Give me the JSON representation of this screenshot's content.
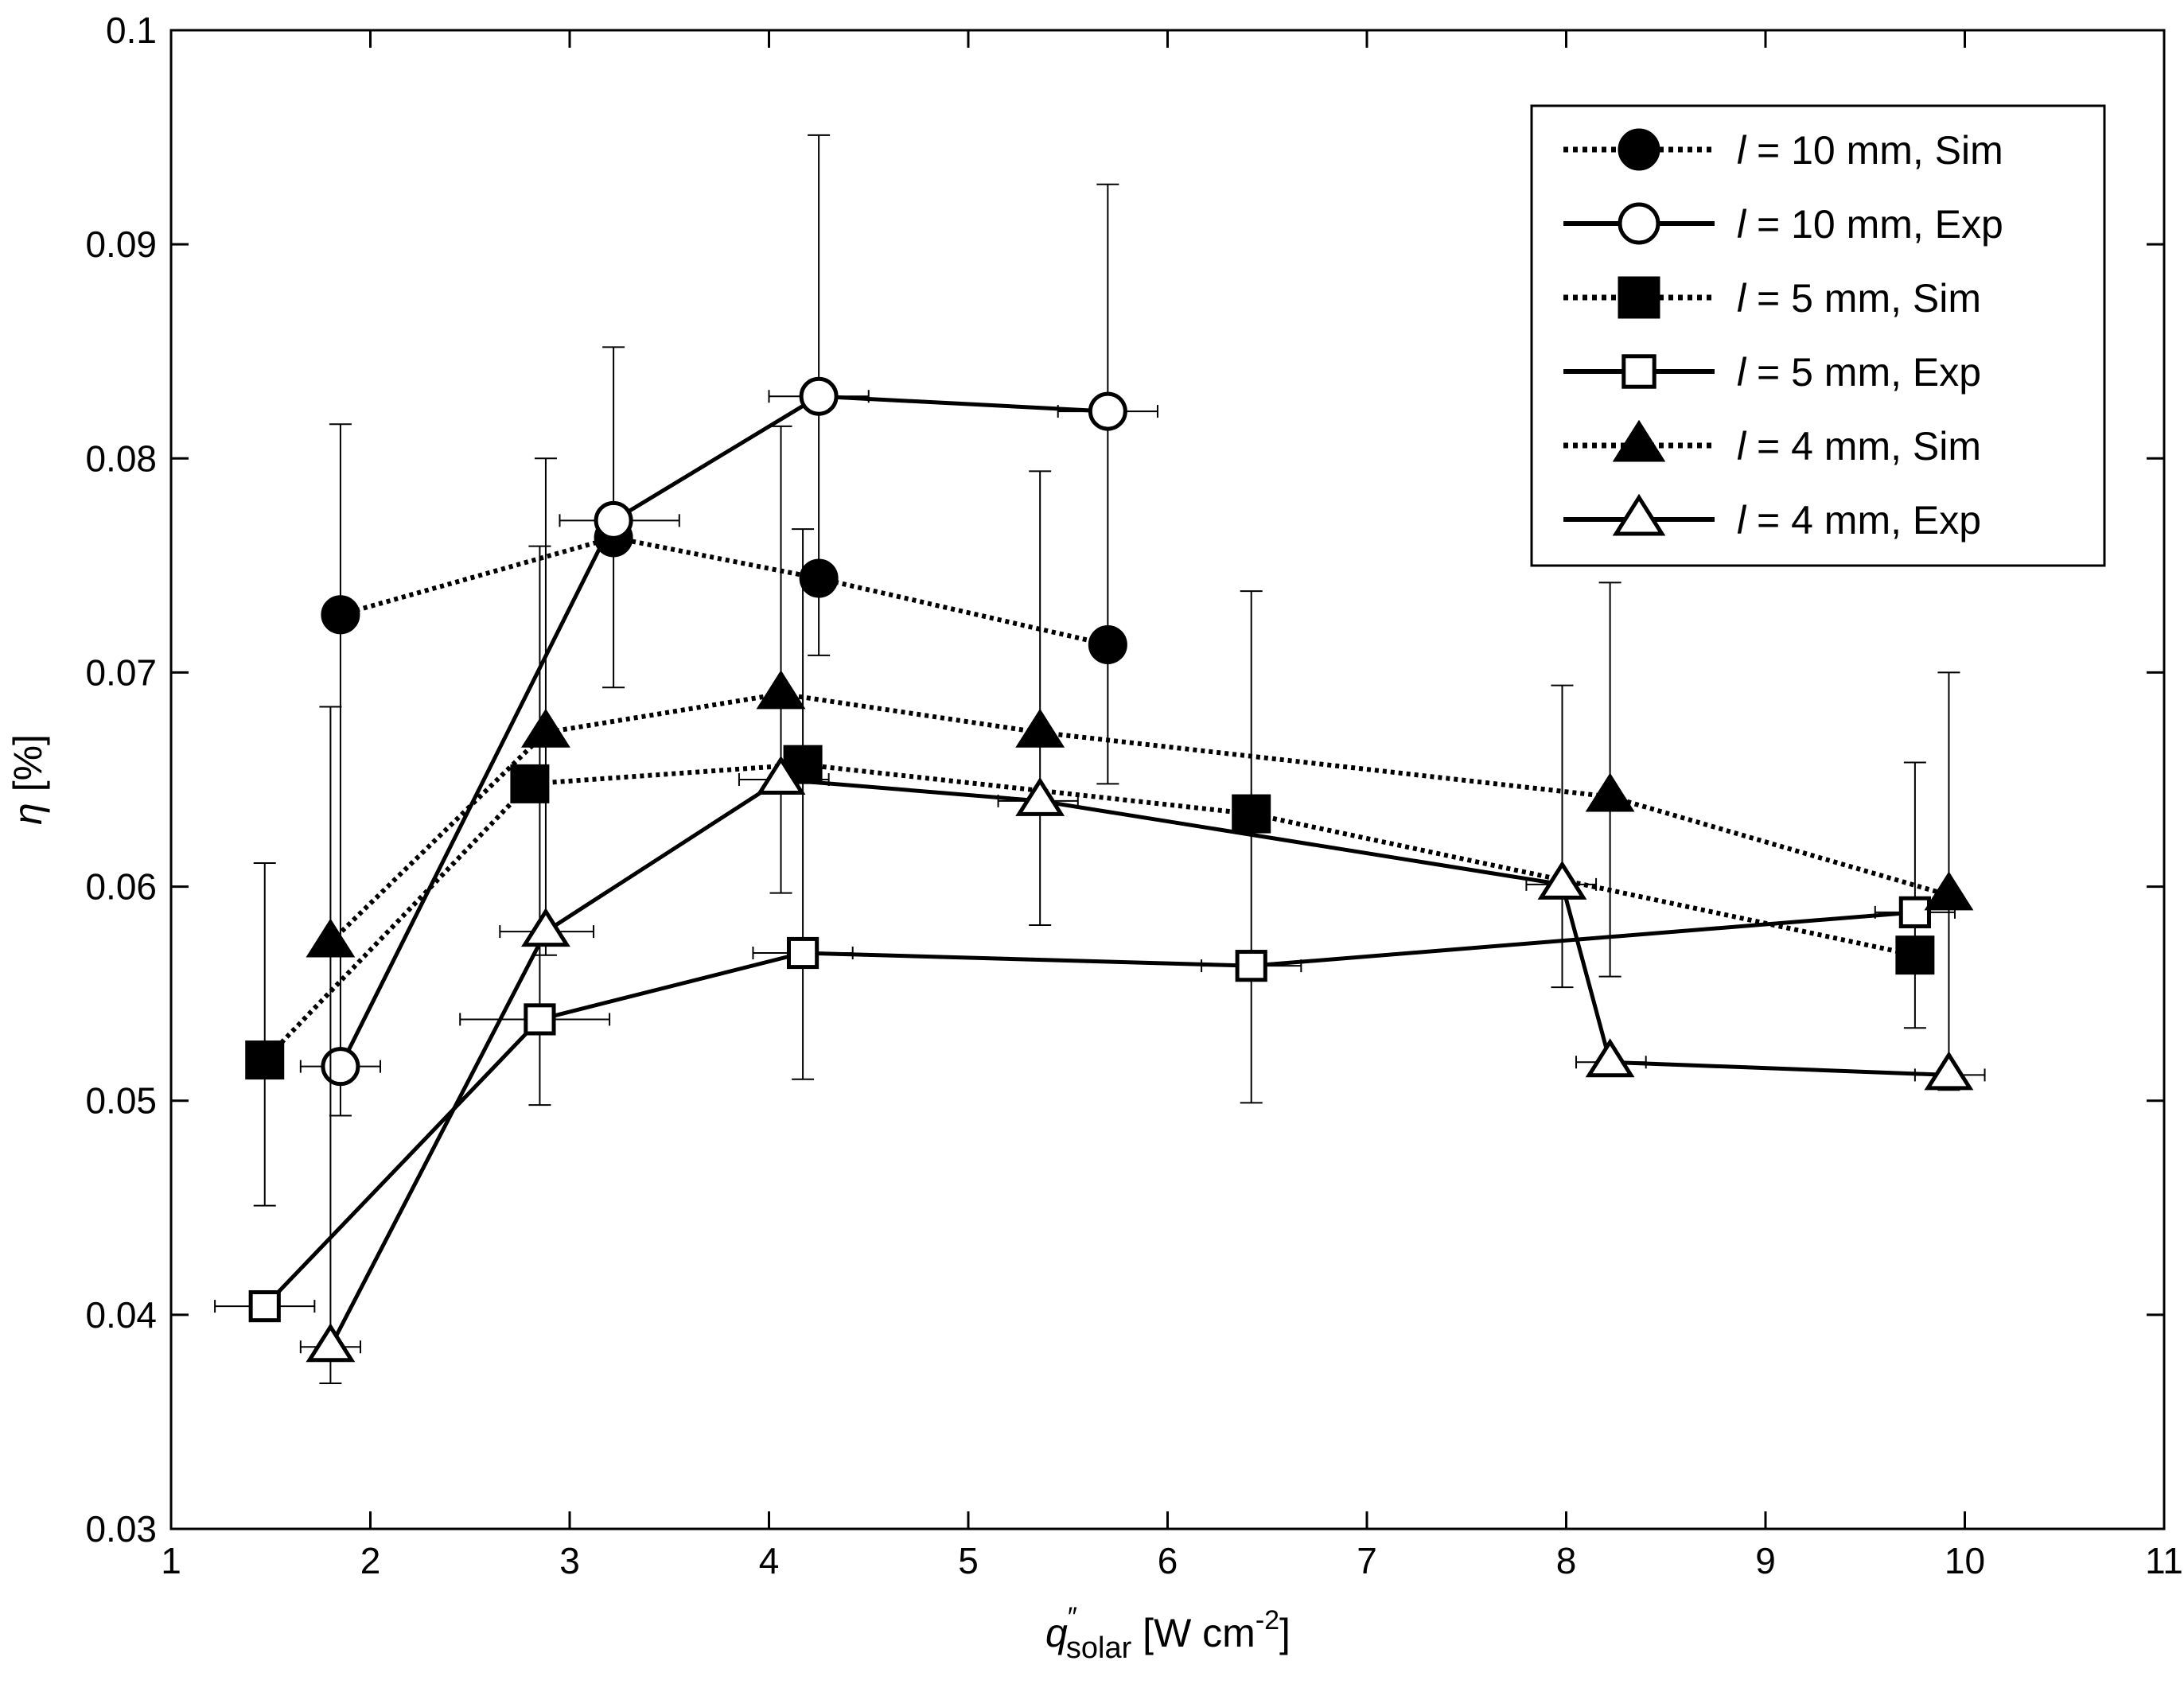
{
  "chart_data": {
    "type": "line",
    "title": "",
    "xlabel": {
      "prefix": "q",
      "superscript": "″",
      "subscript": "solar",
      "unit_open": " [W cm",
      "unit_exp": "-2",
      "unit_close": "]"
    },
    "ylabel": {
      "symbol": "η",
      "unit": " [%]"
    },
    "xlim": [
      1,
      11
    ],
    "ylim": [
      0.03,
      0.1
    ],
    "xticks": [
      1,
      2,
      3,
      4,
      5,
      6,
      7,
      8,
      9,
      10,
      11
    ],
    "yticks": [
      0.03,
      0.04,
      0.05,
      0.06,
      0.07,
      0.08,
      0.09,
      0.1
    ],
    "xtick_labels": [
      "1",
      "2",
      "3",
      "4",
      "5",
      "6",
      "7",
      "8",
      "9",
      "10",
      "11"
    ],
    "ytick_labels": [
      "0.03",
      "0.04",
      "0.05",
      "0.06",
      "0.07",
      "0.08",
      "0.09",
      "0.1"
    ],
    "grid": false,
    "legend_position": "top-right",
    "series": [
      {
        "name": "l = 10 mm, Sim",
        "var": "l",
        "label_rest": " = 10 mm, Sim",
        "marker": "circle",
        "filled": true,
        "line": "dotted",
        "points": [
          {
            "x": 1.85,
            "y": 0.0727
          },
          {
            "x": 3.22,
            "y": 0.0763
          },
          {
            "x": 4.25,
            "y": 0.0744
          },
          {
            "x": 5.7,
            "y": 0.0713
          }
        ]
      },
      {
        "name": "l = 10 mm, Exp",
        "var": "l",
        "label_rest": " = 10 mm, Exp",
        "marker": "circle",
        "filled": false,
        "line": "solid",
        "points": [
          {
            "x": 1.85,
            "y": 0.0516,
            "ylo": 0.0493,
            "yhi": 0.0816,
            "xlo": 1.65,
            "xhi": 2.05
          },
          {
            "x": 3.22,
            "y": 0.0771,
            "ylo": 0.0693,
            "yhi": 0.0852,
            "xlo": 2.95,
            "xhi": 3.55
          },
          {
            "x": 4.25,
            "y": 0.0829,
            "ylo": 0.0708,
            "yhi": 0.0951,
            "xlo": 4.0,
            "xhi": 4.5
          },
          {
            "x": 5.7,
            "y": 0.0822,
            "ylo": 0.0648,
            "yhi": 0.0928,
            "xlo": 5.45,
            "xhi": 5.95
          }
        ]
      },
      {
        "name": "l = 5 mm, Sim",
        "var": "l",
        "label_rest": " = 5 mm, Sim",
        "marker": "square",
        "filled": true,
        "line": "dotted",
        "points": [
          {
            "x": 1.47,
            "y": 0.0519
          },
          {
            "x": 2.8,
            "y": 0.0648
          },
          {
            "x": 4.17,
            "y": 0.0657
          },
          {
            "x": 6.42,
            "y": 0.0634
          },
          {
            "x": 9.75,
            "y": 0.0568
          }
        ]
      },
      {
        "name": "l = 5 mm, Exp",
        "var": "l",
        "label_rest": " = 5 mm, Exp",
        "marker": "square",
        "filled": false,
        "line": "solid",
        "points": [
          {
            "x": 1.47,
            "y": 0.0404,
            "ylo": 0.0451,
            "yhi": 0.0611,
            "xlo": 1.22,
            "xhi": 1.72
          },
          {
            "x": 2.85,
            "y": 0.0538,
            "ylo": 0.0498,
            "yhi": 0.0759,
            "xlo": 2.45,
            "xhi": 3.2
          },
          {
            "x": 4.17,
            "y": 0.0569,
            "ylo": 0.051,
            "yhi": 0.0767,
            "xlo": 3.92,
            "xhi": 4.42
          },
          {
            "x": 6.42,
            "y": 0.0563,
            "ylo": 0.0499,
            "yhi": 0.0738,
            "xlo": 6.17,
            "xhi": 6.67
          },
          {
            "x": 9.75,
            "y": 0.0588,
            "ylo": 0.0534,
            "yhi": 0.0658,
            "xlo": 9.55,
            "xhi": 9.95
          }
        ]
      },
      {
        "name": "l = 4 mm, Sim",
        "var": "l",
        "label_rest": " = 4 mm, Sim",
        "marker": "triangle",
        "filled": true,
        "line": "dotted",
        "points": [
          {
            "x": 1.8,
            "y": 0.0574
          },
          {
            "x": 2.88,
            "y": 0.0672
          },
          {
            "x": 4.06,
            "y": 0.069
          },
          {
            "x": 5.36,
            "y": 0.0672
          },
          {
            "x": 8.22,
            "y": 0.0642
          },
          {
            "x": 9.92,
            "y": 0.0596
          }
        ]
      },
      {
        "name": "l = 4 mm, Exp",
        "var": "l",
        "label_rest": " = 4 mm, Exp",
        "marker": "triangle",
        "filled": false,
        "line": "solid",
        "points": [
          {
            "x": 1.8,
            "y": 0.0385,
            "ylo": 0.0368,
            "yhi": 0.0684,
            "xlo": 1.65,
            "xhi": 1.95
          },
          {
            "x": 2.88,
            "y": 0.0579,
            "ylo": 0.0568,
            "yhi": 0.08,
            "xlo": 2.65,
            "xhi": 3.12
          },
          {
            "x": 4.06,
            "y": 0.065,
            "ylo": 0.0597,
            "yhi": 0.0815,
            "xlo": 3.85,
            "xhi": 4.3
          },
          {
            "x": 5.36,
            "y": 0.064,
            "ylo": 0.0582,
            "yhi": 0.0794,
            "xlo": 5.15,
            "xhi": 5.55
          },
          {
            "x": 7.98,
            "y": 0.0601,
            "ylo": 0.0553,
            "yhi": 0.0694,
            "xlo": 7.8,
            "xhi": 8.15
          },
          {
            "x": 8.22,
            "y": 0.0518,
            "ylo": 0.0558,
            "yhi": 0.0742,
            "xlo": 8.05,
            "xhi": 8.4
          },
          {
            "x": 9.92,
            "y": 0.0512,
            "ylo": 0.0505,
            "yhi": 0.07,
            "xlo": 9.75,
            "xhi": 10.1
          }
        ]
      }
    ]
  }
}
